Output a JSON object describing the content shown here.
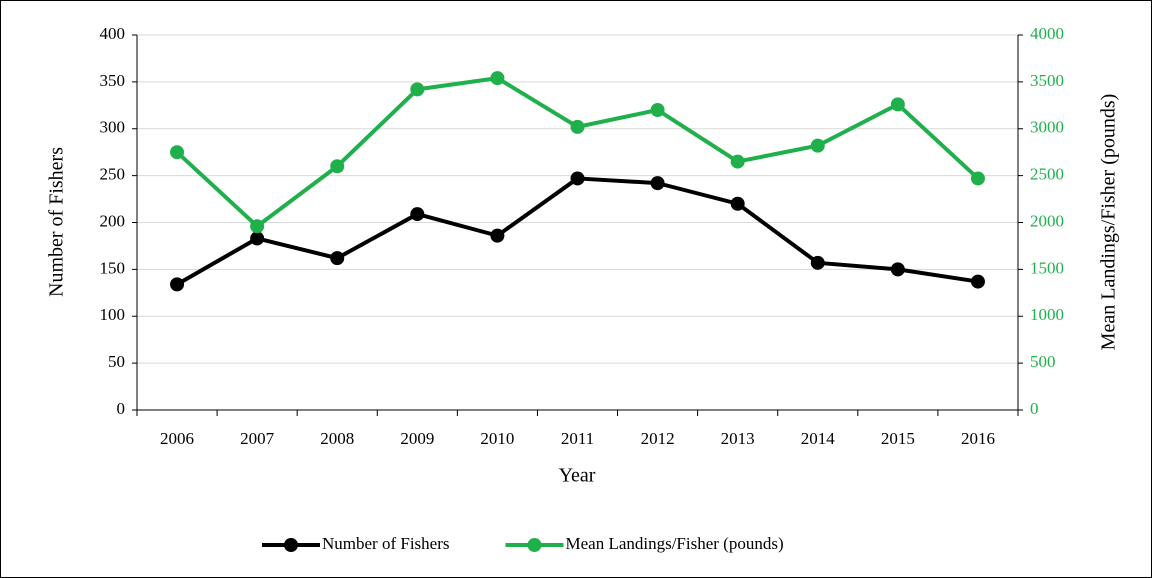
{
  "chart_data": {
    "type": "line",
    "x_label": "Year",
    "y_label": "Number of Fishers",
    "y2_label": "Mean Landings/Fisher (pounds)",
    "categories": [
      "2006",
      "2007",
      "2008",
      "2009",
      "2010",
      "2011",
      "2012",
      "2013",
      "2014",
      "2015",
      "2016"
    ],
    "series": [
      {
        "name": "Number of Fishers",
        "color": "#000000",
        "values": [
          134,
          183,
          162,
          209,
          186,
          247,
          242,
          220,
          157,
          150,
          137
        ]
      },
      {
        "name": "Mean Landings/Fisher (pounds)",
        "color": "#1fb04c",
        "axis": "y2",
        "values": [
          2750,
          1960,
          2600,
          3420,
          3540,
          3020,
          3200,
          2650,
          2820,
          3260,
          2470
        ]
      }
    ],
    "ylim": [
      0,
      400
    ],
    "yticks": [
      0,
      50,
      100,
      150,
      200,
      250,
      300,
      350,
      400
    ],
    "y2lim": [
      0,
      4000
    ],
    "y2ticks": [
      0,
      500,
      1000,
      1500,
      2000,
      2500,
      3000,
      3500,
      4000
    ],
    "grid": true,
    "legend": "bottom"
  }
}
